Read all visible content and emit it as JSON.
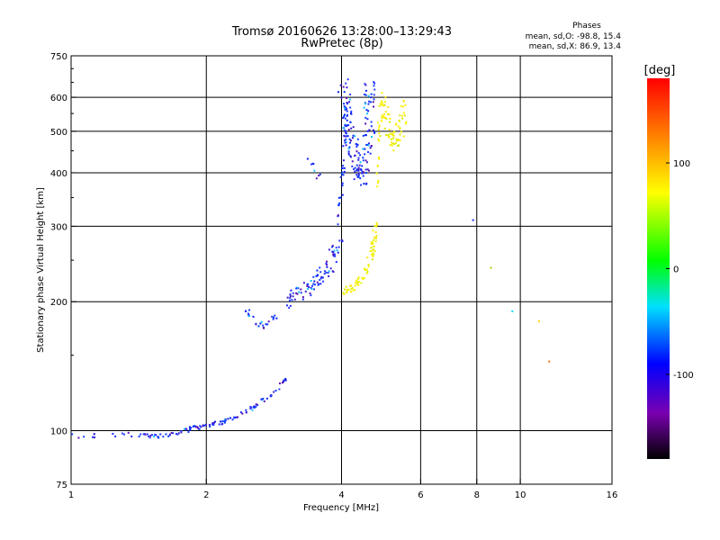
{
  "chart_data": {
    "type": "scatter",
    "title": "Tromsø 20160626 13:28:00–13:29:43",
    "subtitle": "RwPretec (8p)",
    "xlabel": "Frequency [MHz]",
    "ylabel": "Stationary phase Virtual Height [km]",
    "x_scale": "log2",
    "y_scale": "log",
    "xlim": [
      1,
      16
    ],
    "ylim": [
      75,
      750
    ],
    "x_ticks": [
      1,
      2,
      4,
      6,
      8,
      10,
      16
    ],
    "x_tick_labels": [
      "1",
      "2",
      "4",
      "6",
      "8",
      "10",
      "16"
    ],
    "x_gridlines": [
      2,
      4,
      6,
      8,
      10
    ],
    "y_ticks": [
      75,
      100,
      200,
      300,
      400,
      500,
      600,
      750
    ],
    "y_tick_labels": [
      "75",
      "100",
      "200",
      "300",
      "400",
      "500",
      "600",
      "750"
    ],
    "y_gridlines": [
      100,
      200,
      300,
      400,
      500,
      600
    ],
    "grid": true,
    "legend": {
      "title": "Phases",
      "line1": "mean, sd,O: -98.8, 15.4",
      "line2": "mean, sd,X:  86.9, 13.4",
      "position": "top-right"
    },
    "colorbar": {
      "label": "[deg]",
      "range": [
        -180,
        180
      ],
      "ticks": [
        100,
        0,
        -100
      ],
      "tick_labels": [
        "100",
        "0",
        "-100"
      ]
    },
    "series": [
      {
        "name": "O-mode",
        "phase_mean": -98.8,
        "segments": [
          {
            "x": [
              1.0,
              1.3,
              1.5,
              1.7,
              1.85,
              2.0,
              2.2,
              2.5,
              2.8,
              3.0
            ],
            "y": [
              97,
              98,
              97,
              98,
              101,
              103,
              105,
              112,
              122,
              132
            ],
            "n": 130,
            "spread": 0.015
          },
          {
            "x": [
              2.45,
              2.55,
              2.7,
              2.85
            ],
            "y": [
              190,
              180,
              175,
              185
            ],
            "n": 25,
            "spread": 0.03
          },
          {
            "x": [
              3.05,
              3.2,
              3.4,
              3.6,
              3.8,
              3.95
            ],
            "y": [
              200,
              210,
              215,
              228,
              245,
              280
            ],
            "n": 90,
            "spread": 0.05
          },
          {
            "x": [
              3.95,
              4.05,
              4.1
            ],
            "y": [
              300,
              420,
              560
            ],
            "n": 40,
            "spread": 0.02
          },
          {
            "x": [
              4.05,
              4.15,
              4.3,
              4.45,
              4.6,
              4.65
            ],
            "y": [
              640,
              500,
              430,
              390,
              500,
              640
            ],
            "n": 160,
            "spread": 0.06
          },
          {
            "x": [
              3.4,
              3.6
            ],
            "y": [
              430,
              380
            ],
            "n": 8,
            "spread": 0.03
          }
        ],
        "isolated": [
          {
            "x": 7.85,
            "y": 310
          }
        ]
      },
      {
        "name": "X-mode",
        "phase_mean": 86.9,
        "segments": [
          {
            "x": [
              4.0,
              4.2,
              4.4,
              4.6,
              4.7,
              4.8
            ],
            "y": [
              210,
              215,
              225,
              245,
              270,
              310
            ],
            "n": 70,
            "spread": 0.025
          },
          {
            "x": [
              4.8,
              4.85,
              4.9
            ],
            "y": [
              350,
              470,
              600
            ],
            "n": 25,
            "spread": 0.02
          },
          {
            "x": [
              4.9,
              5.1,
              5.3,
              5.5
            ],
            "y": [
              620,
              500,
              460,
              580
            ],
            "n": 70,
            "spread": 0.05
          }
        ],
        "isolated": [
          {
            "x": 8.6,
            "y": 240
          },
          {
            "x": 11.0,
            "y": 180
          },
          {
            "x": 11.6,
            "y": 145
          },
          {
            "x": 9.6,
            "y": 190
          }
        ]
      }
    ]
  }
}
